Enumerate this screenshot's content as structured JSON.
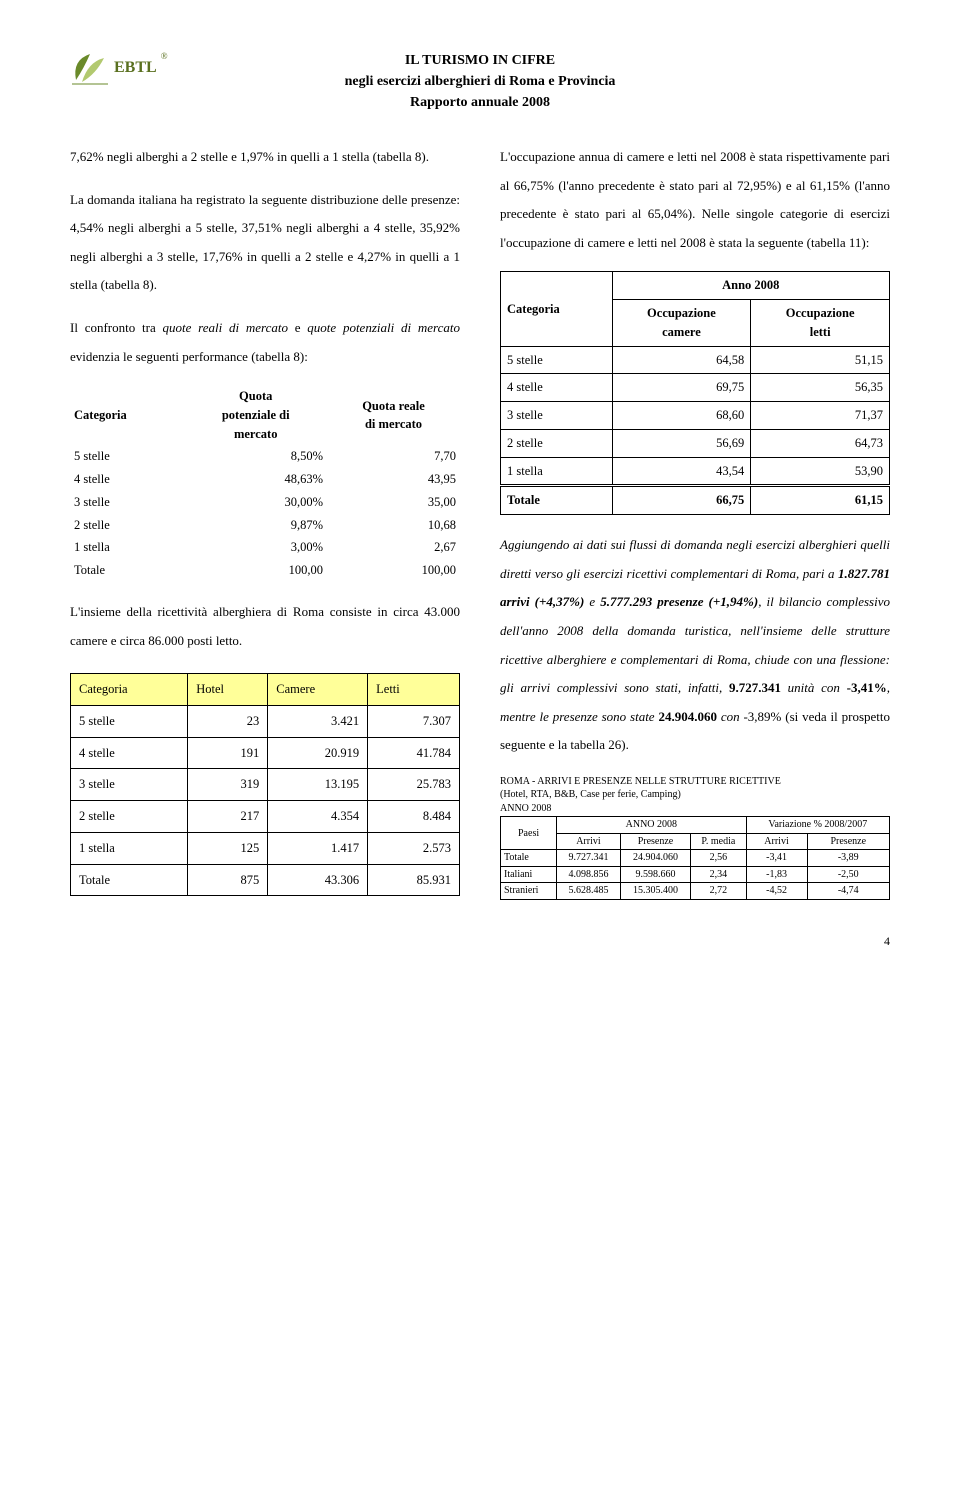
{
  "logo_text": "EBTL",
  "logo_color1": "#6a8a2a",
  "logo_color2": "#b2c96f",
  "logo_mark": "®",
  "header": {
    "line1": "IL TURISMO IN CIFRE",
    "line2": "negli esercizi alberghieri di Roma e Provincia",
    "line3": "Rapporto annuale 2008"
  },
  "left": {
    "p1": "7,62% negli alberghi a 2 stelle e 1,97% in quelli a 1 stella (tabella 8).",
    "p2": "La domanda italiana ha registrato la seguente distribuzione delle presenze: 4,54% negli alberghi a 5 stelle, 37,51% negli alberghi a 4 stelle, 35,92% negli alberghi a 3 stelle, 17,76% in quelli a 2 stelle e 4,27% in quelli a 1 stella (tabella 8).",
    "p3a": "Il confronto tra ",
    "p3b": "quote reali di mercato",
    "p3c": " e ",
    "p3d": "quote potenziali di mercato",
    "p3e": " evidenzia le seguenti performance (tabella 8):",
    "t1": {
      "h1": "Categoria",
      "h2a": "Quota",
      "h2b": "potenziale di",
      "h2c": "mercato",
      "h3a": "Quota reale",
      "h3b": "di mercato",
      "rows": [
        {
          "c": "5 stelle",
          "v1": "8,50%",
          "v2": "7,70"
        },
        {
          "c": "4 stelle",
          "v1": "48,63%",
          "v2": "43,95"
        },
        {
          "c": "3 stelle",
          "v1": "30,00%",
          "v2": "35,00"
        },
        {
          "c": "2 stelle",
          "v1": "9,87%",
          "v2": "10,68"
        },
        {
          "c": "1 stella",
          "v1": "3,00%",
          "v2": "2,67"
        },
        {
          "c": "Totale",
          "v1": "100,00",
          "v2": "100,00"
        }
      ]
    },
    "p4": "L'insieme della ricettività alberghiera di Roma consiste in circa 43.000 camere e circa 86.000 posti letto.",
    "t2": {
      "h": [
        "Categoria",
        "Hotel",
        "Camere",
        "Letti"
      ],
      "header_bg": "#ffff99",
      "rows": [
        {
          "c": "5 stelle",
          "v": [
            "23",
            "3.421",
            "7.307"
          ]
        },
        {
          "c": "4 stelle",
          "v": [
            "191",
            "20.919",
            "41.784"
          ]
        },
        {
          "c": "3 stelle",
          "v": [
            "319",
            "13.195",
            "25.783"
          ]
        },
        {
          "c": "2 stelle",
          "v": [
            "217",
            "4.354",
            "8.484"
          ]
        },
        {
          "c": "1 stella",
          "v": [
            "125",
            "1.417",
            "2.573"
          ]
        },
        {
          "c": "Totale",
          "v": [
            "875",
            "43.306",
            "85.931"
          ]
        }
      ]
    }
  },
  "right": {
    "p1": "L'occupazione annua di camere e letti nel 2008 è stata rispettivamente pari al 66,75% (l'anno precedente è stato pari al 72,95%) e al 61,15% (l'anno precedente è stato pari al 65,04%). Nelle singole categorie di esercizi l'occupazione di camere e letti nel 2008 è stata la seguente (tabella 11):",
    "t1": {
      "h1": "Categoria",
      "h2": "Anno 2008",
      "sh1a": "Occupazione",
      "sh1b": "camere",
      "sh2a": "Occupazione",
      "sh2b": "letti",
      "rows": [
        {
          "c": "5 stelle",
          "v1": "64,58",
          "v2": "51,15"
        },
        {
          "c": "4 stelle",
          "v1": "69,75",
          "v2": "56,35"
        },
        {
          "c": "3 stelle",
          "v1": "68,60",
          "v2": "71,37"
        },
        {
          "c": "2 stelle",
          "v1": "56,69",
          "v2": "64,73"
        },
        {
          "c": "1 stella",
          "v1": "43,54",
          "v2": "53,90"
        }
      ],
      "tot": {
        "c": "Totale",
        "v1": "66,75",
        "v2": "61,15"
      }
    },
    "p2_segments": [
      {
        "t": "Aggiungendo ai dati sui flussi di domanda negli esercizi alberghieri quelli diretti verso gli esercizi ricettivi complementari di Roma, pari a ",
        "s": "i"
      },
      {
        "t": "1.827.781 arrivi (+4,37%)",
        "s": "bi"
      },
      {
        "t": " e ",
        "s": "i"
      },
      {
        "t": "5.777.293 presenze (+1,94%)",
        "s": "bi"
      },
      {
        "t": ", il bilancio complessivo dell'anno 2008 della domanda turistica, nell'insieme delle strutture ricettive alberghiere e complementari di Roma, chiude con una flessione: gli arrivi complessivi sono stati, infatti, ",
        "s": "i"
      },
      {
        "t": "9.727.341",
        "s": "b"
      },
      {
        "t": " unità con ",
        "s": "i"
      },
      {
        "t": "-3,41%",
        "s": "b"
      },
      {
        "t": ", mentre le presenze sono state ",
        "s": "i"
      },
      {
        "t": "24.904.060",
        "s": "b"
      },
      {
        "t": " con ",
        "s": "i"
      },
      {
        "t": "-3,89%",
        "s": "n"
      },
      {
        "t": " (si veda il prospetto seguente e la tabella 26).",
        "s": "n"
      }
    ],
    "ref": {
      "title1": "ROMA - ARRIVI E PRESENZE NELLE STRUTTURE RICETTIVE",
      "title2": "(Hotel, RTA, B&B, Case per ferie, Camping)",
      "title3": "ANNO 2008",
      "h_paesi": "Paesi",
      "h_anno": "ANNO 2008",
      "h_var": "Variazione % 2008/2007",
      "sub": [
        "Arrivi",
        "Presenze",
        "P. media",
        "Arrivi",
        "Presenze"
      ],
      "rows": [
        {
          "c": "Totale",
          "v": [
            "9.727.341",
            "24.904.060",
            "2,56",
            "-3,41",
            "-3,89"
          ]
        },
        {
          "c": "Italiani",
          "v": [
            "4.098.856",
            "9.598.660",
            "2,34",
            "-1,83",
            "-2,50"
          ]
        },
        {
          "c": "Stranieri",
          "v": [
            "5.628.485",
            "15.305.400",
            "2,72",
            "-4,52",
            "-4,74"
          ]
        }
      ]
    }
  },
  "page_number": "4"
}
